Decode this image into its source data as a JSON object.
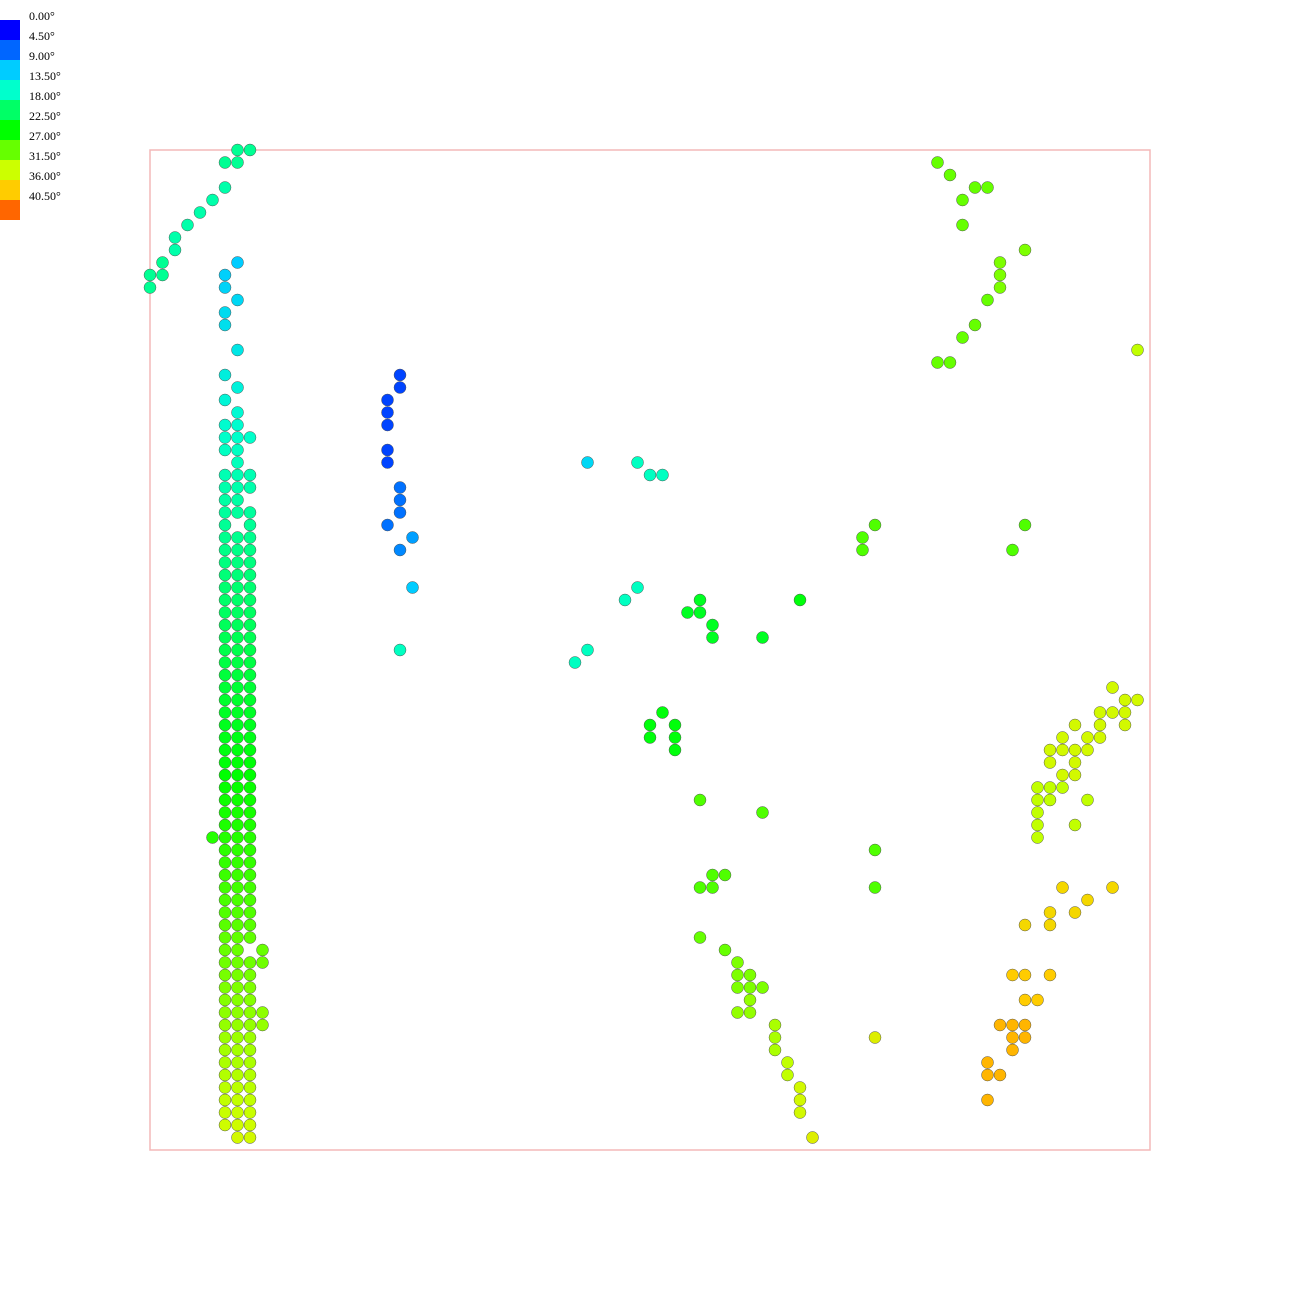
{
  "chart_data": {
    "type": "scatter",
    "title": "",
    "xlabel": "",
    "ylabel": "",
    "grid": false,
    "legend_position": "top-left",
    "frame_color": "#f4b8b8",
    "colorbar": {
      "labels": [
        "0.00°",
        "4.50°",
        "9.00°",
        "13.50°",
        "18.00°",
        "22.50°",
        "27.00°",
        "31.50°",
        "36.00°",
        "40.50°"
      ],
      "colors": [
        "#0000ff",
        "#0066ff",
        "#00ccff",
        "#00ffcc",
        "#00ff66",
        "#00ff00",
        "#66ff00",
        "#ccff00",
        "#ffcc00",
        "#ff6600"
      ]
    },
    "grid_cells": {
      "xlim": [
        0,
        80
      ],
      "ylim": [
        0,
        80
      ],
      "y_increases": "down"
    },
    "clusters": [
      {
        "name": "",
        "points": [
          [
            7,
            0
          ],
          [
            8,
            0
          ],
          [
            6,
            1
          ],
          [
            7,
            1
          ],
          [
            6,
            3
          ],
          [
            5,
            4
          ],
          [
            4,
            5
          ],
          [
            3,
            6
          ],
          [
            2,
            7
          ],
          [
            2,
            8
          ],
          [
            1,
            9
          ],
          [
            0,
            10
          ],
          [
            1,
            10
          ],
          [
            0,
            11
          ]
        ],
        "angles": [
          16,
          16,
          16,
          16,
          15,
          15,
          15,
          15,
          15,
          15,
          16,
          16,
          16,
          16
        ]
      },
      {
        "name": "",
        "points": [
          [
            20,
            18
          ],
          [
            20,
            19
          ],
          [
            19,
            20
          ],
          [
            19,
            21
          ],
          [
            19,
            22
          ],
          [
            19,
            24
          ],
          [
            19,
            25
          ],
          [
            20,
            27
          ],
          [
            20,
            28
          ],
          [
            20,
            29
          ],
          [
            19,
            30
          ],
          [
            21,
            31
          ],
          [
            20,
            32
          ],
          [
            21,
            35
          ],
          [
            20,
            40
          ]
        ],
        "angles": [
          3,
          3,
          3,
          3,
          3,
          3,
          3,
          5,
          5,
          5,
          5,
          7,
          6,
          9,
          14
        ]
      },
      {
        "name": "",
        "points": [
          [
            35,
            25
          ],
          [
            39,
            25
          ],
          [
            40,
            26
          ],
          [
            41,
            26
          ],
          [
            39,
            35
          ],
          [
            38,
            36
          ],
          [
            35,
            40
          ],
          [
            34,
            41
          ]
        ],
        "angles": [
          10,
          14,
          14,
          14,
          14,
          14,
          14,
          14
        ]
      },
      {
        "name": "",
        "points": [
          [
            44,
            36
          ],
          [
            43,
            37
          ],
          [
            44,
            37
          ],
          [
            45,
            38
          ],
          [
            45,
            39
          ],
          [
            49,
            39
          ],
          [
            52,
            36
          ],
          [
            41,
            45
          ],
          [
            40,
            46
          ],
          [
            42,
            46
          ],
          [
            40,
            47
          ],
          [
            42,
            47
          ],
          [
            42,
            48
          ]
        ],
        "angles": [
          21,
          21,
          21,
          21,
          21,
          21,
          22,
          22,
          22,
          22,
          22,
          22,
          22
        ]
      },
      {
        "name": "",
        "points": [
          [
            58,
            30
          ],
          [
            57,
            31
          ],
          [
            57,
            32
          ],
          [
            70,
            30
          ],
          [
            69,
            32
          ],
          [
            58,
            56
          ],
          [
            58,
            59
          ]
        ],
        "angles": [
          26,
          26,
          26,
          26,
          26,
          26,
          26
        ]
      },
      {
        "name": "",
        "points": [
          [
            44,
            52
          ],
          [
            49,
            53
          ],
          [
            45,
            58
          ],
          [
            46,
            58
          ],
          [
            44,
            59
          ],
          [
            45,
            59
          ]
        ],
        "angles": [
          26,
          26,
          26,
          26,
          26,
          26
        ]
      },
      {
        "name": "",
        "points": [
          [
            63,
            1
          ],
          [
            64,
            2
          ],
          [
            66,
            3
          ],
          [
            65,
            4
          ],
          [
            67,
            3
          ],
          [
            65,
            6
          ],
          [
            70,
            8
          ],
          [
            68,
            9
          ],
          [
            68,
            10
          ],
          [
            68,
            11
          ],
          [
            67,
            12
          ],
          [
            66,
            14
          ],
          [
            65,
            15
          ],
          [
            63,
            17
          ],
          [
            64,
            17
          ],
          [
            79,
            16
          ]
        ],
        "angles": [
          27,
          27,
          27,
          27,
          27,
          27,
          28,
          28,
          28,
          28,
          27,
          27,
          27,
          27,
          27,
          31
        ]
      },
      {
        "name": "",
        "points": [
          [
            44,
            63
          ],
          [
            46,
            64
          ],
          [
            47,
            65
          ],
          [
            47,
            66
          ],
          [
            48,
            66
          ],
          [
            47,
            67
          ],
          [
            48,
            67
          ],
          [
            49,
            67
          ],
          [
            48,
            68
          ],
          [
            47,
            69
          ],
          [
            48,
            69
          ],
          [
            50,
            70
          ],
          [
            50,
            71
          ],
          [
            50,
            72
          ],
          [
            51,
            73
          ],
          [
            51,
            74
          ],
          [
            52,
            75
          ],
          [
            52,
            76
          ],
          [
            52,
            77
          ],
          [
            53,
            79
          ],
          [
            58,
            71
          ]
        ],
        "angles": [
          27,
          27,
          28,
          28,
          28,
          28,
          28,
          28,
          29,
          29,
          29,
          30,
          30,
          30,
          31,
          31,
          32,
          32,
          32,
          33,
          33
        ]
      },
      {
        "name": "",
        "points": [
          [
            77,
            43
          ],
          [
            78,
            44
          ],
          [
            79,
            44
          ],
          [
            76,
            45
          ],
          [
            77,
            45
          ],
          [
            78,
            45
          ],
          [
            74,
            46
          ],
          [
            76,
            46
          ],
          [
            78,
            46
          ],
          [
            73,
            47
          ],
          [
            75,
            47
          ],
          [
            76,
            47
          ],
          [
            72,
            48
          ],
          [
            73,
            48
          ],
          [
            74,
            48
          ],
          [
            75,
            48
          ],
          [
            72,
            49
          ],
          [
            74,
            49
          ],
          [
            73,
            50
          ],
          [
            74,
            50
          ],
          [
            71,
            51
          ],
          [
            72,
            51
          ],
          [
            73,
            51
          ],
          [
            71,
            52
          ],
          [
            72,
            52
          ],
          [
            75,
            52
          ],
          [
            71,
            53
          ],
          [
            71,
            54
          ],
          [
            74,
            54
          ],
          [
            71,
            55
          ]
        ],
        "angles": [
          32,
          32,
          32,
          32,
          32,
          32,
          32,
          32,
          32,
          32,
          32,
          32,
          32,
          32,
          32,
          32,
          32,
          32,
          32,
          32,
          31,
          31,
          31,
          31,
          31,
          31,
          31,
          31,
          31,
          31
        ]
      },
      {
        "name": "",
        "points": [
          [
            73,
            59
          ],
          [
            75,
            60
          ],
          [
            77,
            59
          ],
          [
            72,
            61
          ],
          [
            74,
            61
          ],
          [
            70,
            62
          ],
          [
            72,
            62
          ],
          [
            69,
            66
          ],
          [
            70,
            66
          ],
          [
            72,
            66
          ],
          [
            70,
            68
          ],
          [
            71,
            68
          ],
          [
            68,
            70
          ],
          [
            69,
            70
          ],
          [
            70,
            70
          ],
          [
            69,
            71
          ],
          [
            70,
            71
          ],
          [
            69,
            72
          ],
          [
            67,
            73
          ],
          [
            67,
            74
          ],
          [
            68,
            74
          ],
          [
            67,
            76
          ]
        ],
        "angles": [
          35,
          35,
          35,
          35,
          35,
          35,
          35,
          36,
          36,
          36,
          36,
          36,
          37,
          37,
          37,
          37,
          37,
          37,
          37,
          37,
          37,
          37
        ]
      }
    ],
    "column_points": [
      [
        7,
        9
      ],
      [
        6,
        10
      ],
      [
        6,
        11
      ],
      [
        7,
        12
      ],
      [
        6,
        13
      ],
      [
        6,
        14
      ],
      [
        7,
        16
      ],
      [
        6,
        18
      ],
      [
        7,
        19
      ],
      [
        6,
        20
      ],
      [
        7,
        21
      ],
      [
        6,
        22
      ],
      [
        7,
        22
      ],
      [
        6,
        23
      ],
      [
        7,
        23
      ],
      [
        8,
        23
      ],
      [
        6,
        24
      ],
      [
        7,
        24
      ],
      [
        7,
        25
      ],
      [
        6,
        26
      ],
      [
        7,
        26
      ],
      [
        8,
        26
      ],
      [
        6,
        27
      ],
      [
        7,
        27
      ],
      [
        8,
        27
      ],
      [
        6,
        28
      ],
      [
        7,
        28
      ],
      [
        6,
        29
      ],
      [
        7,
        29
      ],
      [
        8,
        29
      ],
      [
        6,
        30
      ],
      [
        8,
        30
      ],
      [
        6,
        31
      ],
      [
        7,
        31
      ],
      [
        8,
        31
      ],
      [
        6,
        32
      ],
      [
        7,
        32
      ],
      [
        8,
        32
      ],
      [
        6,
        33
      ],
      [
        7,
        33
      ],
      [
        8,
        33
      ],
      [
        6,
        34
      ],
      [
        7,
        34
      ],
      [
        8,
        34
      ],
      [
        6,
        35
      ],
      [
        7,
        35
      ],
      [
        8,
        35
      ],
      [
        6,
        36
      ],
      [
        7,
        36
      ],
      [
        8,
        36
      ],
      [
        6,
        37
      ],
      [
        7,
        37
      ],
      [
        8,
        37
      ],
      [
        6,
        38
      ],
      [
        7,
        38
      ],
      [
        8,
        38
      ],
      [
        6,
        39
      ],
      [
        7,
        39
      ],
      [
        8,
        39
      ],
      [
        6,
        40
      ],
      [
        7,
        40
      ],
      [
        8,
        40
      ],
      [
        6,
        41
      ],
      [
        7,
        41
      ],
      [
        8,
        41
      ],
      [
        6,
        42
      ],
      [
        7,
        42
      ],
      [
        8,
        42
      ],
      [
        6,
        43
      ],
      [
        7,
        43
      ],
      [
        8,
        43
      ],
      [
        6,
        44
      ],
      [
        7,
        44
      ],
      [
        8,
        44
      ],
      [
        6,
        45
      ],
      [
        7,
        45
      ],
      [
        8,
        45
      ],
      [
        6,
        46
      ],
      [
        7,
        46
      ],
      [
        8,
        46
      ],
      [
        6,
        47
      ],
      [
        7,
        47
      ],
      [
        8,
        47
      ],
      [
        6,
        48
      ],
      [
        7,
        48
      ],
      [
        8,
        48
      ],
      [
        6,
        49
      ],
      [
        7,
        49
      ],
      [
        8,
        49
      ],
      [
        6,
        50
      ],
      [
        7,
        50
      ],
      [
        8,
        50
      ],
      [
        6,
        51
      ],
      [
        7,
        51
      ],
      [
        8,
        51
      ],
      [
        6,
        52
      ],
      [
        7,
        52
      ],
      [
        8,
        52
      ],
      [
        6,
        53
      ],
      [
        7,
        53
      ],
      [
        8,
        53
      ],
      [
        6,
        54
      ],
      [
        7,
        54
      ],
      [
        8,
        54
      ],
      [
        5,
        55
      ],
      [
        6,
        55
      ],
      [
        7,
        55
      ],
      [
        8,
        55
      ],
      [
        6,
        56
      ],
      [
        7,
        56
      ],
      [
        8,
        56
      ],
      [
        6,
        57
      ],
      [
        7,
        57
      ],
      [
        8,
        57
      ],
      [
        6,
        58
      ],
      [
        7,
        58
      ],
      [
        8,
        58
      ],
      [
        6,
        59
      ],
      [
        7,
        59
      ],
      [
        8,
        59
      ],
      [
        6,
        60
      ],
      [
        7,
        60
      ],
      [
        8,
        60
      ],
      [
        6,
        61
      ],
      [
        7,
        61
      ],
      [
        8,
        61
      ],
      [
        6,
        62
      ],
      [
        7,
        62
      ],
      [
        8,
        62
      ],
      [
        6,
        63
      ],
      [
        7,
        63
      ],
      [
        8,
        63
      ],
      [
        6,
        64
      ],
      [
        7,
        64
      ],
      [
        9,
        64
      ],
      [
        6,
        65
      ],
      [
        7,
        65
      ],
      [
        8,
        65
      ],
      [
        9,
        65
      ],
      [
        6,
        66
      ],
      [
        7,
        66
      ],
      [
        8,
        66
      ],
      [
        6,
        67
      ],
      [
        7,
        67
      ],
      [
        8,
        67
      ],
      [
        6,
        68
      ],
      [
        7,
        68
      ],
      [
        8,
        68
      ],
      [
        6,
        69
      ],
      [
        7,
        69
      ],
      [
        8,
        69
      ],
      [
        9,
        69
      ],
      [
        6,
        70
      ],
      [
        7,
        70
      ],
      [
        8,
        70
      ],
      [
        9,
        70
      ],
      [
        6,
        71
      ],
      [
        7,
        71
      ],
      [
        8,
        71
      ],
      [
        6,
        72
      ],
      [
        7,
        72
      ],
      [
        8,
        72
      ],
      [
        6,
        73
      ],
      [
        7,
        73
      ],
      [
        8,
        73
      ],
      [
        6,
        74
      ],
      [
        7,
        74
      ],
      [
        8,
        74
      ],
      [
        6,
        75
      ],
      [
        7,
        75
      ],
      [
        8,
        75
      ],
      [
        6,
        76
      ],
      [
        7,
        76
      ],
      [
        8,
        76
      ],
      [
        6,
        77
      ],
      [
        7,
        77
      ],
      [
        8,
        77
      ],
      [
        6,
        78
      ],
      [
        7,
        78
      ],
      [
        8,
        78
      ],
      [
        7,
        79
      ],
      [
        8,
        79
      ]
    ],
    "column_angle_range": [
      9,
      32
    ]
  }
}
